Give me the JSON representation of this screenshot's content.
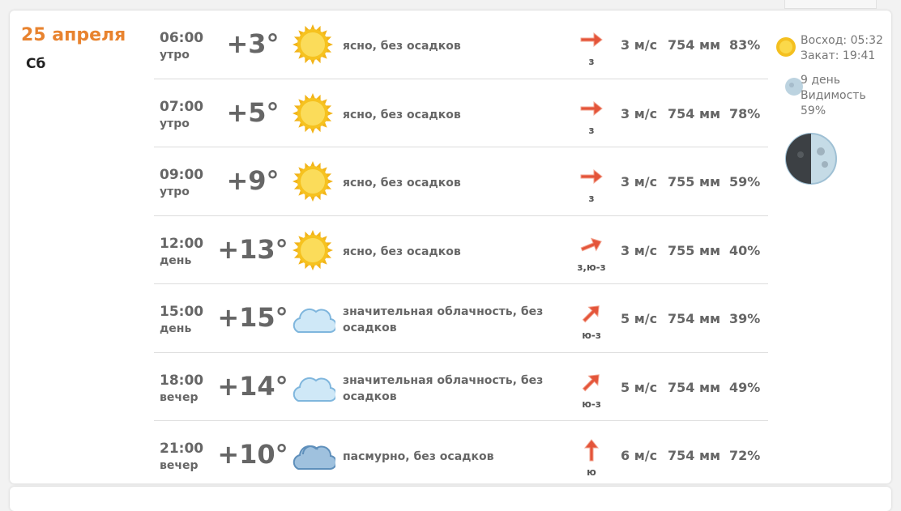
{
  "day": {
    "date": "25 апреля",
    "weekday": "Сб"
  },
  "rows": [
    {
      "time": "06:00",
      "part": "утро",
      "temp": "+3°",
      "icon": "sun",
      "desc": "ясно, без осадков",
      "wind_dir": "з",
      "arrow_deg": 0,
      "wind": "3 м/с",
      "pressure": "754 мм",
      "humidity": "83%"
    },
    {
      "time": "07:00",
      "part": "утро",
      "temp": "+5°",
      "icon": "sun",
      "desc": "ясно, без осадков",
      "wind_dir": "з",
      "arrow_deg": 0,
      "wind": "3 м/с",
      "pressure": "754 мм",
      "humidity": "78%"
    },
    {
      "time": "09:00",
      "part": "утро",
      "temp": "+9°",
      "icon": "sun",
      "desc": "ясно, без осадков",
      "wind_dir": "з",
      "arrow_deg": 0,
      "wind": "3 м/с",
      "pressure": "755 мм",
      "humidity": "59%"
    },
    {
      "time": "12:00",
      "part": "день",
      "temp": "+13°",
      "icon": "sun",
      "desc": "ясно, без осадков",
      "wind_dir": "з,ю-з",
      "arrow_deg": -22,
      "wind": "3 м/с",
      "pressure": "755 мм",
      "humidity": "40%"
    },
    {
      "time": "15:00",
      "part": "день",
      "temp": "+15°",
      "icon": "cloud",
      "desc": "значительная облачность, без осадков",
      "wind_dir": "ю-з",
      "arrow_deg": -45,
      "wind": "5 м/с",
      "pressure": "754 мм",
      "humidity": "39%"
    },
    {
      "time": "18:00",
      "part": "вечер",
      "temp": "+14°",
      "icon": "cloud",
      "desc": "значительная облачность, без осадков",
      "wind_dir": "ю-з",
      "arrow_deg": -45,
      "wind": "5 м/с",
      "pressure": "754 мм",
      "humidity": "49%"
    },
    {
      "time": "21:00",
      "part": "вечер",
      "temp": "+10°",
      "icon": "overcast",
      "desc": "пасмурно, без осадков",
      "wind_dir": "ю",
      "arrow_deg": -90,
      "wind": "6 м/с",
      "pressure": "754 мм",
      "humidity": "72%"
    }
  ],
  "side": {
    "sunrise": "Восход: 05:32",
    "sunset": "Закат: 19:41",
    "moon_day": "9 день",
    "visibility_label": "Видимость",
    "visibility": "59%"
  },
  "colors": {
    "accent": "#e8832f",
    "arrow": "#e4553a"
  }
}
